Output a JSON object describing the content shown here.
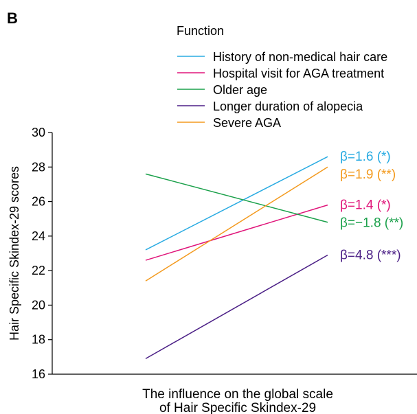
{
  "panel_label": "B",
  "chart_data": {
    "type": "line",
    "legend_title": "Function",
    "legend_placement": "top-right",
    "ylabel": "Hair Specific Skindex-29 scores",
    "xlabel_lines": [
      "The influence on the global scale",
      "of Hair Specific Skindex-29"
    ],
    "ylim": [
      16,
      30
    ],
    "yticks": [
      16,
      18,
      20,
      22,
      24,
      26,
      28,
      30
    ],
    "grid": false,
    "series": [
      {
        "name": "History of non-medical hair care",
        "color": "#29abe2",
        "values": [
          23.2,
          28.6
        ],
        "annotation": "β=1.6 (*)",
        "annotation_color": "#29abe2"
      },
      {
        "name": "Hospital visit for AGA treatment",
        "color": "#e0157a",
        "values": [
          22.6,
          25.8
        ],
        "annotation": "β=1.4 (*)",
        "annotation_color": "#e0157a"
      },
      {
        "name": "Older age",
        "color": "#1aa04a",
        "values": [
          27.6,
          24.8
        ],
        "annotation": "β=−1.8 (**)",
        "annotation_color": "#1aa04a"
      },
      {
        "name": "Longer duration of alopecia",
        "color": "#4b1f86",
        "values": [
          16.9,
          22.9
        ],
        "annotation": "β=4.8 (***)",
        "annotation_color": "#4b1f86"
      },
      {
        "name": "Severe AGA",
        "color": "#f39a1e",
        "values": [
          21.4,
          28.0
        ],
        "annotation": "β=1.9 (**)",
        "annotation_color": "#f39a1e"
      }
    ]
  }
}
